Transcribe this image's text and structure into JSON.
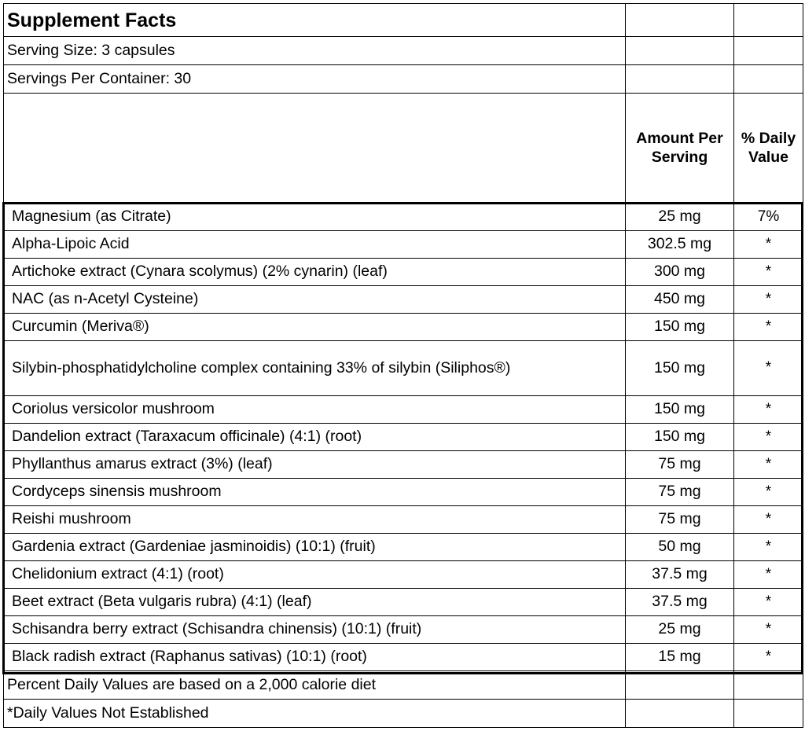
{
  "title": "Supplement Facts",
  "serving_size": "Serving Size: 3 capsules",
  "servings_per_container": "Servings Per Container: 30",
  "header": {
    "amount": "Amount Per Serving",
    "daily_value": "% Daily Value"
  },
  "ingredients": [
    {
      "name": "Magnesium (as Citrate)",
      "amount": "25 mg",
      "dv": "7%"
    },
    {
      "name": "Alpha-Lipoic Acid",
      "amount": "302.5 mg",
      "dv": "*"
    },
    {
      "name": "Artichoke extract (Cynara scolymus) (2% cynarin) (leaf)",
      "amount": "300 mg",
      "dv": "*"
    },
    {
      "name": "NAC (as n-Acetyl Cysteine)",
      "amount": "450 mg",
      "dv": "*"
    },
    {
      "name": "Curcumin (Meriva®)",
      "amount": "150 mg",
      "dv": "*"
    },
    {
      "name": "Silybin-phosphatidylcholine complex containing   33% of silybin (Siliphos®)",
      "amount": "150 mg",
      "dv": "*"
    },
    {
      "name": "Coriolus versicolor mushroom",
      "amount": "150 mg",
      "dv": "*"
    },
    {
      "name": "Dandelion extract (Taraxacum officinale) (4:1) (root)",
      "amount": "150 mg",
      "dv": "*"
    },
    {
      "name": "Phyllanthus amarus extract (3%) (leaf)",
      "amount": "75 mg",
      "dv": "*"
    },
    {
      "name": "Cordyceps sinensis mushroom",
      "amount": "75 mg",
      "dv": "*"
    },
    {
      "name": "Reishi mushroom",
      "amount": "75 mg",
      "dv": "*"
    },
    {
      "name": "Gardenia extract (Gardeniae jasminoidis) (10:1) (fruit)",
      "amount": "50 mg",
      "dv": "*"
    },
    {
      "name": "Chelidonium extract (4:1) (root)",
      "amount": "37.5 mg",
      "dv": "*"
    },
    {
      "name": "Beet extract (Beta vulgaris rubra) (4:1) (leaf)",
      "amount": "37.5 mg",
      "dv": "*"
    },
    {
      "name": "Schisandra berry extract (Schisandra chinensis) (10:1) (fruit)",
      "amount": "25 mg",
      "dv": "*"
    },
    {
      "name": "Black radish extract (Raphanus sativas) (10:1) (root)",
      "amount": "15 mg",
      "dv": "*"
    }
  ],
  "footnotes": [
    "Percent Daily Values are based on a 2,000 calorie diet",
    "*Daily Values Not Established"
  ]
}
